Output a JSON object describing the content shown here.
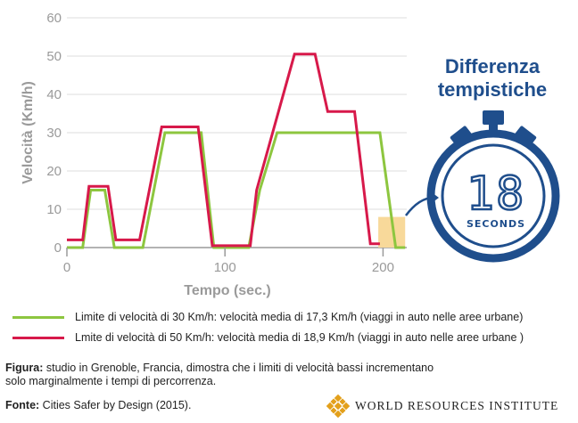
{
  "chart_data": {
    "type": "line",
    "xlabel": "Tempo (sec.)",
    "ylabel": "Velocità (Km/h)",
    "xlim": [
      0,
      215
    ],
    "ylim": [
      0,
      60
    ],
    "x_ticks": [
      0,
      100,
      200
    ],
    "y_ticks": [
      0,
      10,
      20,
      30,
      40,
      50,
      60
    ],
    "grid": "horizontal",
    "series": [
      {
        "name": "Limite di velocità di 30 Km/h: velocità media di 17,3 Km/h (viaggi in auto nelle aree urbane)",
        "color": "#8dc63f",
        "x": [
          0,
          10,
          15,
          24,
          30,
          48,
          62,
          85,
          93,
          115,
          122,
          133,
          198,
          208,
          214
        ],
        "y": [
          0,
          0,
          15,
          15,
          0,
          0,
          30,
          30,
          0,
          0,
          15,
          30,
          30,
          0,
          0
        ]
      },
      {
        "name": "Lmite di velocità di 50 Km/h: velocità media di 18,9 Km/h (viaggi in auto nelle aree urbane )",
        "color": "#d7194a",
        "x": [
          0,
          10,
          14,
          26,
          31,
          46,
          60,
          83,
          92,
          116,
          120,
          144,
          157,
          165,
          182,
          192,
          198
        ],
        "y": [
          2,
          2,
          16,
          16,
          2,
          2,
          31.5,
          31.5,
          0.5,
          0.5,
          15,
          50.5,
          50.5,
          35.5,
          35.5,
          1,
          1
        ]
      }
    ],
    "highlight": {
      "x": [
        197,
        214
      ],
      "y": [
        0,
        8
      ],
      "color": "#f8d99a"
    }
  },
  "stopwatch": {
    "title_line1": "Differenza",
    "title_line2": "tempistiche",
    "value": "18",
    "unit": "SECONDS",
    "color": "#1f4e8c"
  },
  "caption": {
    "figura_label": "Figura:",
    "figura_text": "studio in Grenoble, Francia, dimostra che i limiti di velocità bassi incrementano",
    "figura_text2": "solo marginalmente i tempi di percorrenza.",
    "fonte_label": "Fonte:",
    "fonte_text": "Cities Safer by Design (2015)."
  },
  "logo": {
    "text": "WORLD RESOURCES INSTITUTE"
  }
}
